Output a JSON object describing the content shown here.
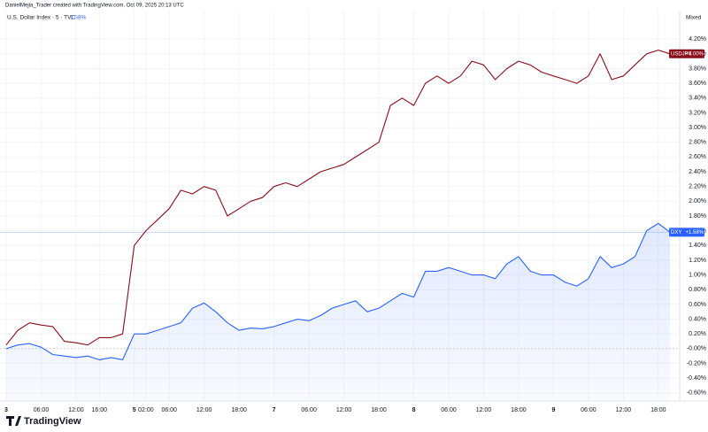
{
  "chart_data": {
    "type": "line",
    "attribution": "DanielMejia_Trader created with TradingView.com, Oct 09, 2025 20:13 UTC",
    "subtitle": "U.S. Dollar Index · 5 · TVC",
    "subtitle_value": "1.58%",
    "scale_mode": "Mixed",
    "brand": "TradingView",
    "grid": true,
    "categories": [
      "3",
      null,
      null,
      "06:00",
      null,
      null,
      "12:00",
      null,
      "16:00",
      null,
      null,
      "5",
      "02:00",
      null,
      "06:00",
      null,
      null,
      "12:00",
      null,
      null,
      "18:00",
      null,
      null,
      "7",
      null,
      null,
      "06:00",
      null,
      null,
      "12:00",
      null,
      null,
      "18:00",
      null,
      null,
      "8",
      null,
      null,
      "06:00",
      null,
      null,
      "12:00",
      null,
      null,
      "18:00",
      null,
      null,
      "9",
      null,
      null,
      "06:00",
      null,
      null,
      "12:00",
      null,
      null,
      "18:00",
      null
    ],
    "series": [
      {
        "name": "USDJPY",
        "color": "#880e1a",
        "end_label": "+4.00%",
        "values": [
          0.05,
          0.25,
          0.35,
          0.32,
          0.3,
          0.1,
          0.08,
          0.05,
          0.15,
          0.15,
          0.2,
          1.4,
          1.6,
          1.75,
          1.9,
          2.15,
          2.1,
          2.2,
          2.15,
          1.8,
          1.9,
          2.0,
          2.05,
          2.2,
          2.25,
          2.2,
          2.3,
          2.4,
          2.45,
          2.5,
          2.6,
          2.7,
          2.8,
          3.3,
          3.4,
          3.3,
          3.6,
          3.7,
          3.6,
          3.7,
          3.9,
          3.85,
          3.65,
          3.8,
          3.9,
          3.85,
          3.75,
          3.7,
          3.65,
          3.6,
          3.7,
          4.0,
          3.65,
          3.7,
          3.85,
          4.0,
          4.05,
          4.0
        ]
      },
      {
        "name": "DXY",
        "color": "#2962ff",
        "end_label": "+1.58%",
        "area": true,
        "values": [
          0.0,
          0.05,
          0.07,
          0.02,
          -0.08,
          -0.1,
          -0.12,
          -0.1,
          -0.15,
          -0.12,
          -0.15,
          0.2,
          0.2,
          0.25,
          0.3,
          0.35,
          0.55,
          0.62,
          0.5,
          0.35,
          0.25,
          0.28,
          0.27,
          0.3,
          0.35,
          0.4,
          0.38,
          0.45,
          0.55,
          0.6,
          0.65,
          0.5,
          0.55,
          0.65,
          0.75,
          0.7,
          1.05,
          1.05,
          1.1,
          1.05,
          1.0,
          1.0,
          0.95,
          1.15,
          1.25,
          1.05,
          1.0,
          1.0,
          0.9,
          0.85,
          0.95,
          1.25,
          1.1,
          1.15,
          1.25,
          1.6,
          1.7,
          1.58
        ]
      }
    ],
    "ylim": [
      -0.71,
      4.49
    ],
    "yticks": [
      {
        "value": -0.6,
        "label": "-0.60%"
      },
      {
        "value": -0.4,
        "label": "-0.40%"
      },
      {
        "value": -0.2,
        "label": "-0.20%"
      },
      {
        "value": 0,
        "label": "-0.00%"
      },
      {
        "value": 0.2,
        "label": "0.20%"
      },
      {
        "value": 0.4,
        "label": "0.40%"
      },
      {
        "value": 0.6,
        "label": "0.60%"
      },
      {
        "value": 0.8,
        "label": "0.80%"
      },
      {
        "value": 1.0,
        "label": "1.00%"
      },
      {
        "value": 1.2,
        "label": "1.20%"
      },
      {
        "value": 1.4,
        "label": "1.40%"
      },
      {
        "value": 1.6,
        "label": "1.60%"
      },
      {
        "value": 1.8,
        "label": "1.80%"
      },
      {
        "value": 2.0,
        "label": "2.00%"
      },
      {
        "value": 2.2,
        "label": "2.20%"
      },
      {
        "value": 2.4,
        "label": "2.40%"
      },
      {
        "value": 2.6,
        "label": "2.60%"
      },
      {
        "value": 2.8,
        "label": "2.80%"
      },
      {
        "value": 3.0,
        "label": "3.00%"
      },
      {
        "value": 3.2,
        "label": "3.20%"
      },
      {
        "value": 3.4,
        "label": "3.40%"
      },
      {
        "value": 3.6,
        "label": "3.60%"
      },
      {
        "value": 3.8,
        "label": "3.80%"
      },
      {
        "value": 4.0,
        "label": "4.00%"
      },
      {
        "value": 4.2,
        "label": "4.20%"
      }
    ]
  }
}
